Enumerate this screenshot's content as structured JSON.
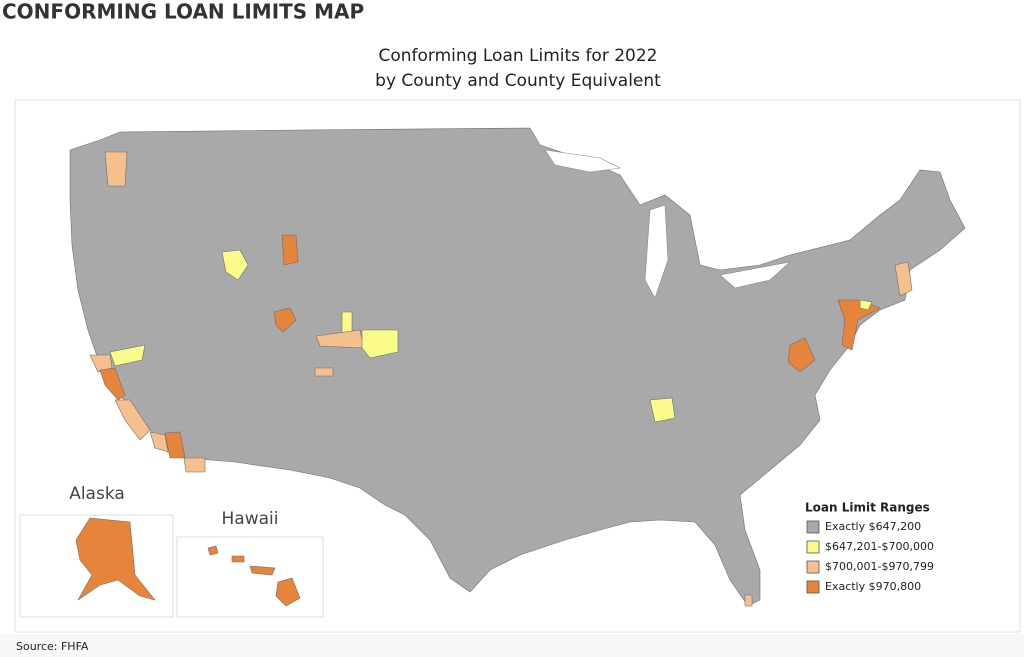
{
  "header": {
    "title": "CONFORMING LOAN LIMITS MAP"
  },
  "map": {
    "title": [
      "Conforming Loan Limits for 2022",
      "by County and County Equivalent"
    ],
    "insets": [
      "Alaska",
      "Hawaii"
    ],
    "legend": {
      "title": "Loan Limit Ranges",
      "items": [
        {
          "label": "Exactly $647,200",
          "color": "#a9a9a9"
        },
        {
          "label": "$647,201-$700,000",
          "color": "#fbfb8c"
        },
        {
          "label": "$700,001-$970,799",
          "color": "#f5c08e"
        },
        {
          "label": "Exactly $970,800",
          "color": "#e5843a"
        }
      ]
    }
  },
  "source": "Source: FHFA"
}
